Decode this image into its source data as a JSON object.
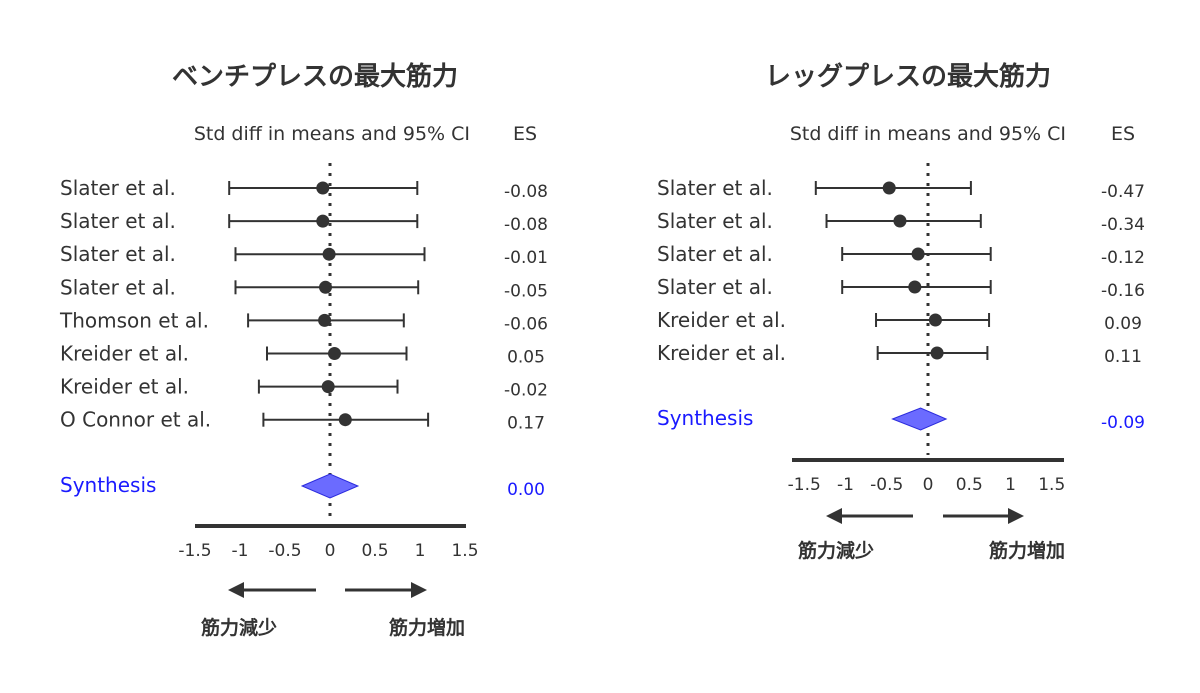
{
  "chart_data": [
    {
      "type": "forest",
      "title": "ベンチプレスの最大筋力",
      "header_ci": "Std diff in means and 95% CI",
      "header_es": "ES",
      "xlim": [
        -1.5,
        1.5
      ],
      "ticks": [
        "-1.5",
        "-1",
        "-0.5",
        "0",
        "0.5",
        "1",
        "1.5"
      ],
      "studies": [
        {
          "name": "Slater et al.",
          "es": -0.08,
          "lo": -1.12,
          "hi": 0.97,
          "label": "-0.08"
        },
        {
          "name": "Slater et al.",
          "es": -0.08,
          "lo": -1.12,
          "hi": 0.97,
          "label": "-0.08"
        },
        {
          "name": "Slater et al.",
          "es": -0.01,
          "lo": -1.05,
          "hi": 1.05,
          "label": "-0.01"
        },
        {
          "name": "Slater et al.",
          "es": -0.05,
          "lo": -1.05,
          "hi": 0.98,
          "label": "-0.05"
        },
        {
          "name": "Thomson et al.",
          "es": -0.06,
          "lo": -0.91,
          "hi": 0.82,
          "label": "-0.06"
        },
        {
          "name": "Kreider et al.",
          "es": 0.05,
          "lo": -0.7,
          "hi": 0.85,
          "label": "0.05"
        },
        {
          "name": "Kreider et al.",
          "es": -0.02,
          "lo": -0.79,
          "hi": 0.75,
          "label": "-0.02"
        },
        {
          "name": "O Connor et al.",
          "es": 0.17,
          "lo": -0.74,
          "hi": 1.09,
          "label": "0.17"
        }
      ],
      "synthesis": {
        "name": "Synthesis",
        "es": 0.0,
        "lo": -0.31,
        "hi": 0.31,
        "label": "0.00"
      },
      "arrow_left_label": "筋力減少",
      "arrow_right_label": "筋力増加",
      "colors": {
        "text": "#333333",
        "synthesis_text": "#1a1aff",
        "synthesis_fill": "#6b6bff",
        "synthesis_stroke": "#2b2bdd"
      }
    },
    {
      "type": "forest",
      "title": "レッグプレスの最大筋力",
      "header_ci": "Std diff in means and 95% CI",
      "header_es": "ES",
      "xlim": [
        -1.5,
        1.5
      ],
      "ticks": [
        "-1.5",
        "-1",
        "-0.5",
        "0",
        "0.5",
        "1",
        "1.5"
      ],
      "studies": [
        {
          "name": "Slater et al.",
          "es": -0.47,
          "lo": -1.36,
          "hi": 0.52,
          "label": "-0.47"
        },
        {
          "name": "Slater et al.",
          "es": -0.34,
          "lo": -1.23,
          "hi": 0.64,
          "label": "-0.34"
        },
        {
          "name": "Slater et al.",
          "es": -0.12,
          "lo": -1.04,
          "hi": 0.76,
          "label": "-0.12"
        },
        {
          "name": "Slater et al.",
          "es": -0.16,
          "lo": -1.04,
          "hi": 0.76,
          "label": "-0.16"
        },
        {
          "name": "Kreider et al.",
          "es": 0.09,
          "lo": -0.63,
          "hi": 0.74,
          "label": "0.09"
        },
        {
          "name": "Kreider et al.",
          "es": 0.11,
          "lo": -0.61,
          "hi": 0.72,
          "label": "0.11"
        }
      ],
      "synthesis": {
        "name": "Synthesis",
        "es": -0.09,
        "lo": -0.43,
        "hi": 0.22,
        "label": "-0.09"
      },
      "arrow_left_label": "筋力減少",
      "arrow_right_label": "筋力増加",
      "colors": {
        "text": "#333333",
        "synthesis_text": "#1a1aff",
        "synthesis_fill": "#6b6bff",
        "synthesis_stroke": "#2b2bdd"
      }
    }
  ]
}
